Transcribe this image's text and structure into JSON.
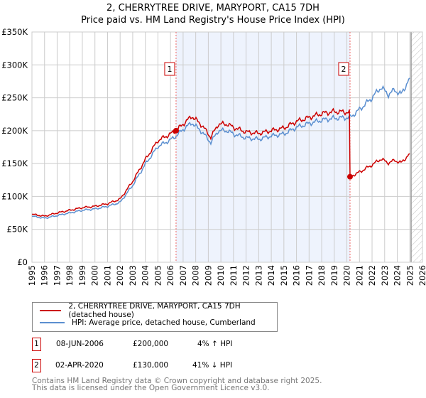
{
  "title": [
    "2, CHERRYTREE DRIVE, MARYPORT, CA15 7DH",
    "Price paid vs. HM Land Registry's House Price Index (HPI)"
  ],
  "chart_data": {
    "type": "line",
    "title": "2, CHERRYTREE DRIVE, MARYPORT, CA15 7DH — Price paid vs. HM Land Registry's House Price Index (HPI)",
    "xlim": [
      1995,
      2026
    ],
    "ylim": [
      0,
      350000
    ],
    "x_ticks": [
      "1995",
      "1996",
      "1997",
      "1998",
      "1999",
      "2000",
      "2001",
      "2002",
      "2003",
      "2004",
      "2005",
      "2006",
      "2007",
      "2008",
      "2009",
      "2010",
      "2011",
      "2012",
      "2013",
      "2014",
      "2015",
      "2016",
      "2017",
      "2018",
      "2019",
      "2020",
      "2021",
      "2022",
      "2023",
      "2024",
      "2025",
      "2026"
    ],
    "y_ticks": [
      {
        "v": 0,
        "l": "£0"
      },
      {
        "v": 50000,
        "l": "£50K"
      },
      {
        "v": 100000,
        "l": "£100K"
      },
      {
        "v": 150000,
        "l": "£150K"
      },
      {
        "v": 200000,
        "l": "£200K"
      },
      {
        "v": 250000,
        "l": "£250K"
      },
      {
        "v": 300000,
        "l": "£300K"
      },
      {
        "v": 350000,
        "l": "£350K"
      }
    ],
    "series": [
      {
        "name": "2, CHERRYTREE DRIVE, MARYPORT, CA15 7DH (detached house)",
        "color": "#cc0000",
        "x": [
          1995,
          1996,
          1997,
          1998,
          1999,
          2000,
          2001,
          2002,
          2003,
          2004,
          2005,
          2006,
          2006.44,
          2007,
          2007.7,
          2008.5,
          2009.2,
          2009.8,
          2010.5,
          2011,
          2012,
          2013,
          2014,
          2015,
          2016,
          2017,
          2018,
          2019,
          2020.2,
          2020.25,
          2021,
          2022,
          2022.7,
          2023.3,
          2023.8,
          2024.3,
          2025
        ],
        "y": [
          73000,
          70000,
          75000,
          79000,
          83000,
          85000,
          89000,
          96000,
          123000,
          156000,
          185000,
          195000,
          200000,
          210000,
          222000,
          208000,
          190000,
          210000,
          210000,
          205000,
          198000,
          196000,
          200000,
          204000,
          214000,
          220000,
          226000,
          229000,
          228000,
          130000,
          137000,
          148000,
          157000,
          151000,
          155000,
          151000,
          165000
        ]
      },
      {
        "name": "HPI: Average price, detached house, Cumberland",
        "color": "#5b8fd0",
        "x": [
          1995,
          1996,
          1997,
          1998,
          1999,
          2000,
          2001,
          2002,
          2003,
          2004,
          2005,
          2006,
          2006.44,
          2007,
          2007.7,
          2008.5,
          2009.2,
          2009.8,
          2010.5,
          2011,
          2012,
          2013,
          2014,
          2015,
          2016,
          2017,
          2018,
          2019,
          2020.25,
          2021,
          2022,
          2022.7,
          2023.3,
          2023.8,
          2024.3,
          2025
        ],
        "y": [
          70000,
          67000,
          71000,
          75000,
          79000,
          81000,
          85000,
          91000,
          117000,
          149000,
          176000,
          186000,
          192000,
          202000,
          212000,
          198000,
          182000,
          200000,
          200000,
          195000,
          189000,
          187000,
          192000,
          195000,
          205000,
          211000,
          216000,
          219000,
          220000,
          232000,
          250000,
          266000,
          255000,
          262000,
          255000,
          280000
        ]
      }
    ],
    "sales": [
      {
        "id": "1",
        "x": 2006.44,
        "y": 200000
      },
      {
        "id": "2",
        "x": 2020.25,
        "y": 130000
      }
    ],
    "shaded_range": [
      2006.44,
      2020.25
    ],
    "hatched_from": 2025.1
  },
  "legend": [
    "2, CHERRYTREE DRIVE, MARYPORT, CA15 7DH (detached house)",
    "HPI: Average price, detached house, Cumberland"
  ],
  "transactions": [
    {
      "id": "1",
      "date": "08-JUN-2006",
      "price": "£200,000",
      "hpi": "4% ↑ HPI"
    },
    {
      "id": "2",
      "date": "02-APR-2020",
      "price": "£130,000",
      "hpi": "41% ↓ HPI"
    }
  ],
  "footer": [
    "Contains HM Land Registry data © Crown copyright and database right 2025.",
    "This data is licensed under the Open Government Licence v3.0."
  ]
}
